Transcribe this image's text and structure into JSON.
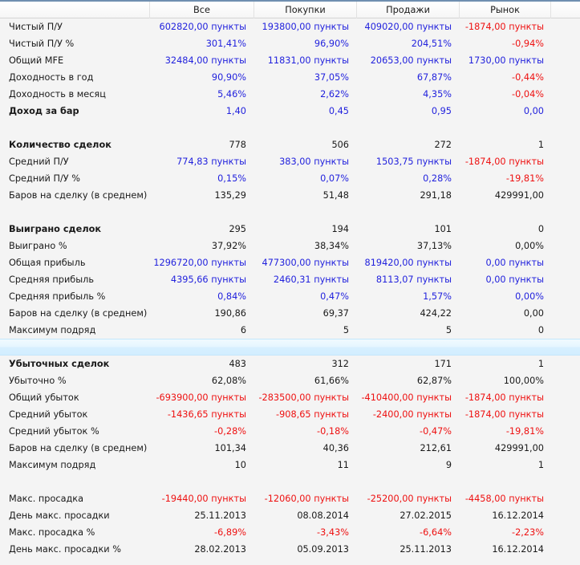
{
  "colors": {
    "positive": "#2222dd",
    "negative": "#ee1111",
    "neutral": "#1a1a1a",
    "selected_row": "#d6efff"
  },
  "header": {
    "columns": [
      "",
      "Все",
      "Покупки",
      "Продажи",
      "Рынок",
      ""
    ]
  },
  "rows": [
    {
      "label": "Чистый П/У",
      "bold": false,
      "values": [
        "602820,00 пункты",
        "193800,00 пункты",
        "409020,00 пункты",
        "-1874,00 пункты"
      ],
      "colors": [
        "blue",
        "blue",
        "blue",
        "red"
      ]
    },
    {
      "label": "Чистый П/У %",
      "bold": false,
      "values": [
        "301,41%",
        "96,90%",
        "204,51%",
        "-0,94%"
      ],
      "colors": [
        "blue",
        "blue",
        "blue",
        "red"
      ]
    },
    {
      "label": "Общий MFE",
      "bold": false,
      "values": [
        "32484,00 пункты",
        "11831,00 пункты",
        "20653,00 пункты",
        "1730,00 пункты"
      ],
      "colors": [
        "blue",
        "blue",
        "blue",
        "blue"
      ]
    },
    {
      "label": "Доходность в год",
      "bold": false,
      "values": [
        "90,90%",
        "37,05%",
        "67,87%",
        "-0,44%"
      ],
      "colors": [
        "blue",
        "blue",
        "blue",
        "red"
      ]
    },
    {
      "label": "Доходность в месяц",
      "bold": false,
      "values": [
        "5,46%",
        "2,62%",
        "4,35%",
        "-0,04%"
      ],
      "colors": [
        "blue",
        "blue",
        "blue",
        "red"
      ]
    },
    {
      "label": "Доход за бар",
      "bold": true,
      "values": [
        "1,40",
        "0,45",
        "0,95",
        "0,00"
      ],
      "colors": [
        "blue",
        "blue",
        "blue",
        "blue"
      ]
    },
    {
      "label": "",
      "bold": false,
      "values": [
        "",
        "",
        "",
        ""
      ],
      "colors": [
        "black",
        "black",
        "black",
        "black"
      ]
    },
    {
      "label": "Количество сделок",
      "bold": true,
      "values": [
        "778",
        "506",
        "272",
        "1"
      ],
      "colors": [
        "black",
        "black",
        "black",
        "black"
      ]
    },
    {
      "label": "Средний П/У",
      "bold": false,
      "values": [
        "774,83 пункты",
        "383,00 пункты",
        "1503,75 пункты",
        "-1874,00 пункты"
      ],
      "colors": [
        "blue",
        "blue",
        "blue",
        "red"
      ]
    },
    {
      "label": "Средний П/У %",
      "bold": false,
      "values": [
        "0,15%",
        "0,07%",
        "0,28%",
        "-19,81%"
      ],
      "colors": [
        "blue",
        "blue",
        "blue",
        "red"
      ]
    },
    {
      "label": "Баров на сделку (в среднем)",
      "bold": false,
      "values": [
        "135,29",
        "51,48",
        "291,18",
        "429991,00"
      ],
      "colors": [
        "black",
        "black",
        "black",
        "black"
      ]
    },
    {
      "label": "",
      "bold": false,
      "values": [
        "",
        "",
        "",
        ""
      ],
      "colors": [
        "black",
        "black",
        "black",
        "black"
      ]
    },
    {
      "label": "Выиграно сделок",
      "bold": true,
      "values": [
        "295",
        "194",
        "101",
        "0"
      ],
      "colors": [
        "black",
        "black",
        "black",
        "black"
      ]
    },
    {
      "label": "Выиграно %",
      "bold": false,
      "values": [
        "37,92%",
        "38,34%",
        "37,13%",
        "0,00%"
      ],
      "colors": [
        "black",
        "black",
        "black",
        "black"
      ]
    },
    {
      "label": "Общая прибыль",
      "bold": false,
      "values": [
        "1296720,00 пункты",
        "477300,00 пункты",
        "819420,00 пункты",
        "0,00 пункты"
      ],
      "colors": [
        "blue",
        "blue",
        "blue",
        "blue"
      ]
    },
    {
      "label": "Средняя прибыль",
      "bold": false,
      "values": [
        "4395,66 пункты",
        "2460,31 пункты",
        "8113,07 пункты",
        "0,00 пункты"
      ],
      "colors": [
        "blue",
        "blue",
        "blue",
        "blue"
      ]
    },
    {
      "label": "Средняя прибыль %",
      "bold": false,
      "values": [
        "0,84%",
        "0,47%",
        "1,57%",
        "0,00%"
      ],
      "colors": [
        "blue",
        "blue",
        "blue",
        "blue"
      ]
    },
    {
      "label": "Баров на сделку (в среднем)",
      "bold": false,
      "values": [
        "190,86",
        "69,37",
        "424,22",
        "0,00"
      ],
      "colors": [
        "black",
        "black",
        "black",
        "black"
      ]
    },
    {
      "label": "Максимум подряд",
      "bold": false,
      "values": [
        "6",
        "5",
        "5",
        "0"
      ],
      "colors": [
        "black",
        "black",
        "black",
        "black"
      ]
    },
    {
      "label": "",
      "bold": false,
      "selected": true,
      "values": [
        "",
        "",
        "",
        ""
      ],
      "colors": [
        "black",
        "black",
        "black",
        "black"
      ]
    },
    {
      "label": "Убыточных сделок",
      "bold": true,
      "values": [
        "483",
        "312",
        "171",
        "1"
      ],
      "colors": [
        "black",
        "black",
        "black",
        "black"
      ]
    },
    {
      "label": "Убыточно %",
      "bold": false,
      "values": [
        "62,08%",
        "61,66%",
        "62,87%",
        "100,00%"
      ],
      "colors": [
        "black",
        "black",
        "black",
        "black"
      ]
    },
    {
      "label": "Общий убыток",
      "bold": false,
      "values": [
        "-693900,00 пункты",
        "-283500,00 пункты",
        "-410400,00 пункты",
        "-1874,00 пункты"
      ],
      "colors": [
        "red",
        "red",
        "red",
        "red"
      ]
    },
    {
      "label": "Средний убыток",
      "bold": false,
      "values": [
        "-1436,65 пункты",
        "-908,65 пункты",
        "-2400,00 пункты",
        "-1874,00 пункты"
      ],
      "colors": [
        "red",
        "red",
        "red",
        "red"
      ]
    },
    {
      "label": "Средний убыток %",
      "bold": false,
      "values": [
        "-0,28%",
        "-0,18%",
        "-0,47%",
        "-19,81%"
      ],
      "colors": [
        "red",
        "red",
        "red",
        "red"
      ]
    },
    {
      "label": "Баров на сделку (в среднем)",
      "bold": false,
      "values": [
        "101,34",
        "40,36",
        "212,61",
        "429991,00"
      ],
      "colors": [
        "black",
        "black",
        "black",
        "black"
      ]
    },
    {
      "label": "Максимум подряд",
      "bold": false,
      "values": [
        "10",
        "11",
        "9",
        "1"
      ],
      "colors": [
        "black",
        "black",
        "black",
        "black"
      ]
    },
    {
      "label": "",
      "bold": false,
      "values": [
        "",
        "",
        "",
        ""
      ],
      "colors": [
        "black",
        "black",
        "black",
        "black"
      ]
    },
    {
      "label": "Макс. просадка",
      "bold": false,
      "values": [
        "-19440,00 пункты",
        "-12060,00 пункты",
        "-25200,00 пункты",
        "-4458,00 пункты"
      ],
      "colors": [
        "red",
        "red",
        "red",
        "red"
      ]
    },
    {
      "label": "День макс. просадки",
      "bold": false,
      "values": [
        "25.11.2013",
        "08.08.2014",
        "27.02.2015",
        "16.12.2014"
      ],
      "colors": [
        "black",
        "black",
        "black",
        "black"
      ]
    },
    {
      "label": "Макс. просадка %",
      "bold": false,
      "values": [
        "-6,89%",
        "-3,43%",
        "-6,64%",
        "-2,23%"
      ],
      "colors": [
        "red",
        "red",
        "red",
        "red"
      ]
    },
    {
      "label": "День макс. просадки %",
      "bold": false,
      "values": [
        "28.02.2013",
        "05.09.2013",
        "25.11.2013",
        "16.12.2014"
      ],
      "colors": [
        "black",
        "black",
        "black",
        "black"
      ]
    }
  ]
}
